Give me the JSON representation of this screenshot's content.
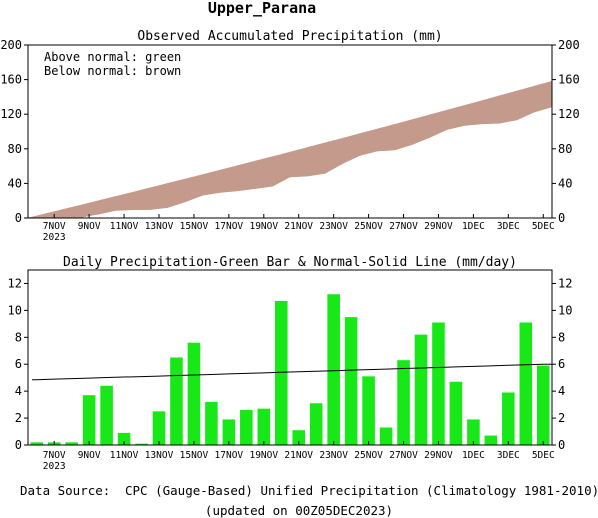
{
  "page": {
    "title": "Upper_Parana",
    "source_label": "Data Source:",
    "source_text": "CPC (Gauge-Based) Unified Precipitation (Climatology 1981-2010)",
    "updated": "(updated on 00Z05DEC2023)"
  },
  "colors": {
    "above_normal": "#00dd00",
    "below_normal": "#c49a8c",
    "daily_bar": "#18e818",
    "normal_line": "#000000",
    "source_label": "#e02020"
  },
  "chart_data": [
    {
      "type": "area",
      "title": "Observed Accumulated Precipitation (mm)",
      "legend": [
        "Above normal: green",
        "Below normal: brown"
      ],
      "legend_position": "top-left",
      "x_tick_labels": [
        "7NOV",
        "9NOV",
        "11NOV",
        "13NOV",
        "15NOV",
        "17NOV",
        "19NOV",
        "21NOV",
        "23NOV",
        "25NOV",
        "27NOV",
        "29NOV",
        "1DEC",
        "3DEC",
        "5DEC"
      ],
      "x_year_label": "2023",
      "ylim": [
        0,
        200
      ],
      "y_ticks": [
        0,
        40,
        80,
        120,
        160,
        200
      ],
      "days": [
        "6NOV",
        "7NOV",
        "8NOV",
        "9NOV",
        "10NOV",
        "11NOV",
        "12NOV",
        "13NOV",
        "14NOV",
        "15NOV",
        "16NOV",
        "17NOV",
        "18NOV",
        "19NOV",
        "20NOV",
        "21NOV",
        "22NOV",
        "23NOV",
        "24NOV",
        "25NOV",
        "26NOV",
        "27NOV",
        "28NOV",
        "29NOV",
        "30NOV",
        "1DEC",
        "2DEC",
        "3DEC",
        "4DEC",
        "5DEC"
      ],
      "series": [
        {
          "name": "Observed",
          "values": [
            0.2,
            0.4,
            0.6,
            4.3,
            8.7,
            9.6,
            9.7,
            12.2,
            18.7,
            26.3,
            29.5,
            31.4,
            34.0,
            36.7,
            47.4,
            48.5,
            51.6,
            62.8,
            72.3,
            77.4,
            78.7,
            85.0,
            93.2,
            102.3,
            107.0,
            108.9,
            109.6,
            113.5,
            122.6,
            128.5
          ]
        },
        {
          "name": "Normal",
          "values": [
            4.9,
            9.8,
            14.8,
            19.8,
            24.8,
            29.8,
            34.9,
            40.0,
            45.1,
            50.2,
            55.3,
            60.5,
            65.7,
            70.9,
            76.2,
            81.5,
            86.8,
            92.1,
            97.5,
            102.9,
            108.3,
            113.7,
            119.2,
            124.7,
            130.2,
            135.7,
            141.3,
            146.9,
            152.5,
            158.0
          ]
        }
      ]
    },
    {
      "type": "bar",
      "title": "Daily Precipitation-Green Bar & Normal-Solid Line (mm/day)",
      "x_tick_labels": [
        "7NOV",
        "9NOV",
        "11NOV",
        "13NOV",
        "15NOV",
        "17NOV",
        "19NOV",
        "21NOV",
        "23NOV",
        "25NOV",
        "27NOV",
        "29NOV",
        "1DEC",
        "3DEC",
        "5DEC"
      ],
      "x_year_label": "2023",
      "ylim": [
        0,
        13
      ],
      "y_ticks": [
        0,
        2,
        4,
        6,
        8,
        10,
        12
      ],
      "categories": [
        "6NOV",
        "7NOV",
        "8NOV",
        "9NOV",
        "10NOV",
        "11NOV",
        "12NOV",
        "13NOV",
        "14NOV",
        "15NOV",
        "16NOV",
        "17NOV",
        "18NOV",
        "19NOV",
        "20NOV",
        "21NOV",
        "22NOV",
        "23NOV",
        "24NOV",
        "25NOV",
        "26NOV",
        "27NOV",
        "28NOV",
        "29NOV",
        "30NOV",
        "1DEC",
        "2DEC",
        "3DEC",
        "4DEC",
        "5DEC"
      ],
      "series": [
        {
          "name": "Daily Precipitation",
          "values": [
            0.2,
            0.2,
            0.2,
            3.7,
            4.4,
            0.9,
            0.1,
            2.5,
            6.5,
            7.6,
            3.2,
            1.9,
            2.6,
            2.7,
            10.7,
            1.1,
            3.1,
            11.2,
            9.5,
            5.1,
            1.3,
            6.3,
            8.2,
            9.1,
            4.7,
            1.9,
            0.7,
            3.9,
            9.1,
            5.9
          ]
        },
        {
          "name": "Normal",
          "values": [
            4.85,
            4.89,
            4.93,
            4.97,
            5.01,
            5.05,
            5.08,
            5.12,
            5.16,
            5.2,
            5.24,
            5.28,
            5.32,
            5.36,
            5.4,
            5.44,
            5.48,
            5.52,
            5.56,
            5.6,
            5.64,
            5.68,
            5.72,
            5.76,
            5.8,
            5.84,
            5.88,
            5.92,
            5.96,
            6.0
          ]
        }
      ]
    }
  ]
}
